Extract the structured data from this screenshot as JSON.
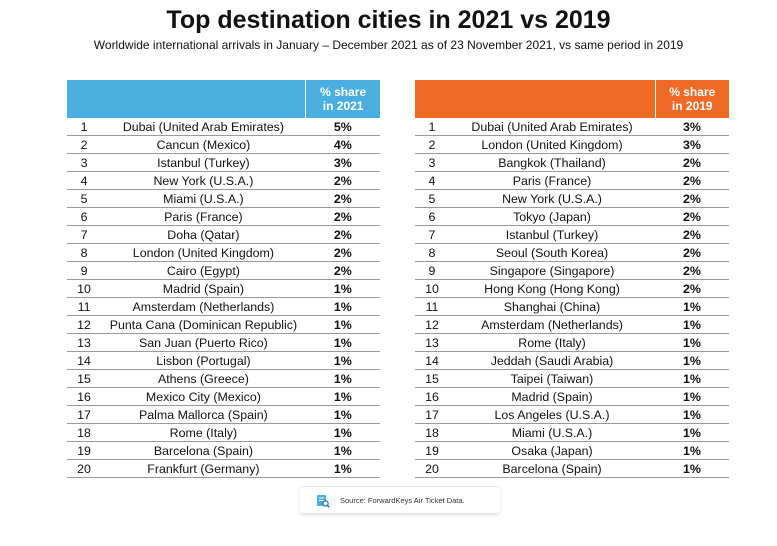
{
  "title": "Top destination cities in 2021 vs 2019",
  "subtitle": "Worldwide international arrivals in January – December 2021 as of 23 November 2021, vs same period in 2019",
  "source": "Source: ForwardKeys Air Ticket Data.",
  "colors": {
    "header_2021": "#4aaee1",
    "header_2019": "#ef6a24"
  },
  "chart_data": [
    {
      "type": "table",
      "header": [
        "",
        "",
        "% share in 2021"
      ],
      "share_header_lines": [
        "% share",
        "in 2021"
      ],
      "rows": [
        {
          "rank": "1",
          "city": "Dubai (United Arab Emirates)",
          "share": "5%"
        },
        {
          "rank": "2",
          "city": "Cancun (Mexico)",
          "share": "4%"
        },
        {
          "rank": "3",
          "city": "Istanbul (Turkey)",
          "share": "3%"
        },
        {
          "rank": "4",
          "city": "New York (U.S.A.)",
          "share": "2%"
        },
        {
          "rank": "5",
          "city": "Miami (U.S.A.)",
          "share": "2%"
        },
        {
          "rank": "6",
          "city": "Paris (France)",
          "share": "2%"
        },
        {
          "rank": "7",
          "city": "Doha (Qatar)",
          "share": "2%"
        },
        {
          "rank": "8",
          "city": "London (United Kingdom)",
          "share": "2%"
        },
        {
          "rank": "9",
          "city": "Cairo (Egypt)",
          "share": "2%"
        },
        {
          "rank": "10",
          "city": "Madrid (Spain)",
          "share": "1%"
        },
        {
          "rank": "11",
          "city": "Amsterdam (Netherlands)",
          "share": "1%"
        },
        {
          "rank": "12",
          "city": "Punta Cana (Dominican Republic)",
          "share": "1%"
        },
        {
          "rank": "13",
          "city": "San Juan (Puerto Rico)",
          "share": "1%"
        },
        {
          "rank": "14",
          "city": "Lisbon (Portugal)",
          "share": "1%"
        },
        {
          "rank": "15",
          "city": "Athens (Greece)",
          "share": "1%"
        },
        {
          "rank": "16",
          "city": "Mexico City (Mexico)",
          "share": "1%"
        },
        {
          "rank": "17",
          "city": "Palma Mallorca (Spain)",
          "share": "1%"
        },
        {
          "rank": "18",
          "city": "Rome (Italy)",
          "share": "1%"
        },
        {
          "rank": "19",
          "city": "Barcelona (Spain)",
          "share": "1%"
        },
        {
          "rank": "20",
          "city": "Frankfurt (Germany)",
          "share": "1%"
        }
      ]
    },
    {
      "type": "table",
      "header": [
        "",
        "",
        "% share in 2019"
      ],
      "share_header_lines": [
        "% share",
        "in 2019"
      ],
      "rows": [
        {
          "rank": "1",
          "city": "Dubai (United Arab Emirates)",
          "share": "3%"
        },
        {
          "rank": "2",
          "city": "London (United Kingdom)",
          "share": "3%"
        },
        {
          "rank": "3",
          "city": "Bangkok (Thailand)",
          "share": "2%"
        },
        {
          "rank": "4",
          "city": "Paris (France)",
          "share": "2%"
        },
        {
          "rank": "5",
          "city": "New York (U.S.A.)",
          "share": "2%"
        },
        {
          "rank": "6",
          "city": "Tokyo (Japan)",
          "share": "2%"
        },
        {
          "rank": "7",
          "city": "Istanbul (Turkey)",
          "share": "2%"
        },
        {
          "rank": "8",
          "city": "Seoul (South Korea)",
          "share": "2%"
        },
        {
          "rank": "9",
          "city": "Singapore (Singapore)",
          "share": "2%"
        },
        {
          "rank": "10",
          "city": "Hong Kong (Hong Kong)",
          "share": "2%"
        },
        {
          "rank": "11",
          "city": "Shanghai (China)",
          "share": "1%"
        },
        {
          "rank": "12",
          "city": "Amsterdam (Netherlands)",
          "share": "1%"
        },
        {
          "rank": "13",
          "city": "Rome (Italy)",
          "share": "1%"
        },
        {
          "rank": "14",
          "city": "Jeddah (Saudi Arabia)",
          "share": "1%"
        },
        {
          "rank": "15",
          "city": "Taipei (Taiwan)",
          "share": "1%"
        },
        {
          "rank": "16",
          "city": "Madrid (Spain)",
          "share": "1%"
        },
        {
          "rank": "17",
          "city": "Los Angeles (U.S.A.)",
          "share": "1%"
        },
        {
          "rank": "18",
          "city": "Miami (U.S.A.)",
          "share": "1%"
        },
        {
          "rank": "19",
          "city": "Osaka (Japan)",
          "share": "1%"
        },
        {
          "rank": "20",
          "city": "Barcelona (Spain)",
          "share": "1%"
        }
      ]
    }
  ]
}
